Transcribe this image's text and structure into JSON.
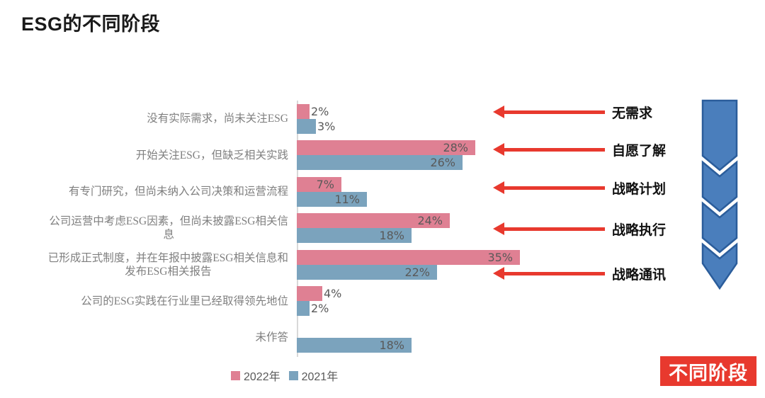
{
  "title": "ESG的不同阶段",
  "chart_data": {
    "type": "bar",
    "orientation": "horizontal",
    "title": "ESG的不同阶段",
    "unit": "%",
    "value_label_format": "{value}%",
    "xlim": [
      0,
      38
    ],
    "grid": false,
    "legend_position": "bottom",
    "categories": [
      [
        "没有实际需求，尚未关注ESG"
      ],
      [
        "开始关注ESG，但缺乏相关实践"
      ],
      [
        "有专门研究，但尚未纳入公司决策和运营流程"
      ],
      [
        "公司运营中考虑ESG因素，但尚未披露ESG相关信",
        "息"
      ],
      [
        "已形成正式制度，并在年报中披露ESG相关信息和",
        "发布ESG相关报告"
      ],
      [
        "公司的ESG实践在行业里已经取得领先地位"
      ],
      [
        "未作答"
      ]
    ],
    "series": [
      {
        "name": "2022年",
        "color": "#df8093",
        "values": [
          2,
          28,
          7,
          24,
          35,
          4,
          null
        ]
      },
      {
        "name": "2021年",
        "color": "#7ba3bd",
        "values": [
          3,
          26,
          11,
          18,
          22,
          2,
          18
        ]
      }
    ]
  },
  "stages": [
    {
      "label": "无需求"
    },
    {
      "label": "自愿了解"
    },
    {
      "label": "战略计划"
    },
    {
      "label": "战略执行"
    },
    {
      "label": "战略通讯"
    }
  ],
  "badge": {
    "label": "不同阶段"
  },
  "colors": {
    "red": "#e8392e",
    "pink_2022": "#df8093",
    "blue_2021": "#7ba3bd",
    "chevron_fill": "#4a7ebc",
    "chevron_stroke": "#2b5d9b",
    "label_gray": "#7f7f7f",
    "value_gray": "#595959"
  }
}
